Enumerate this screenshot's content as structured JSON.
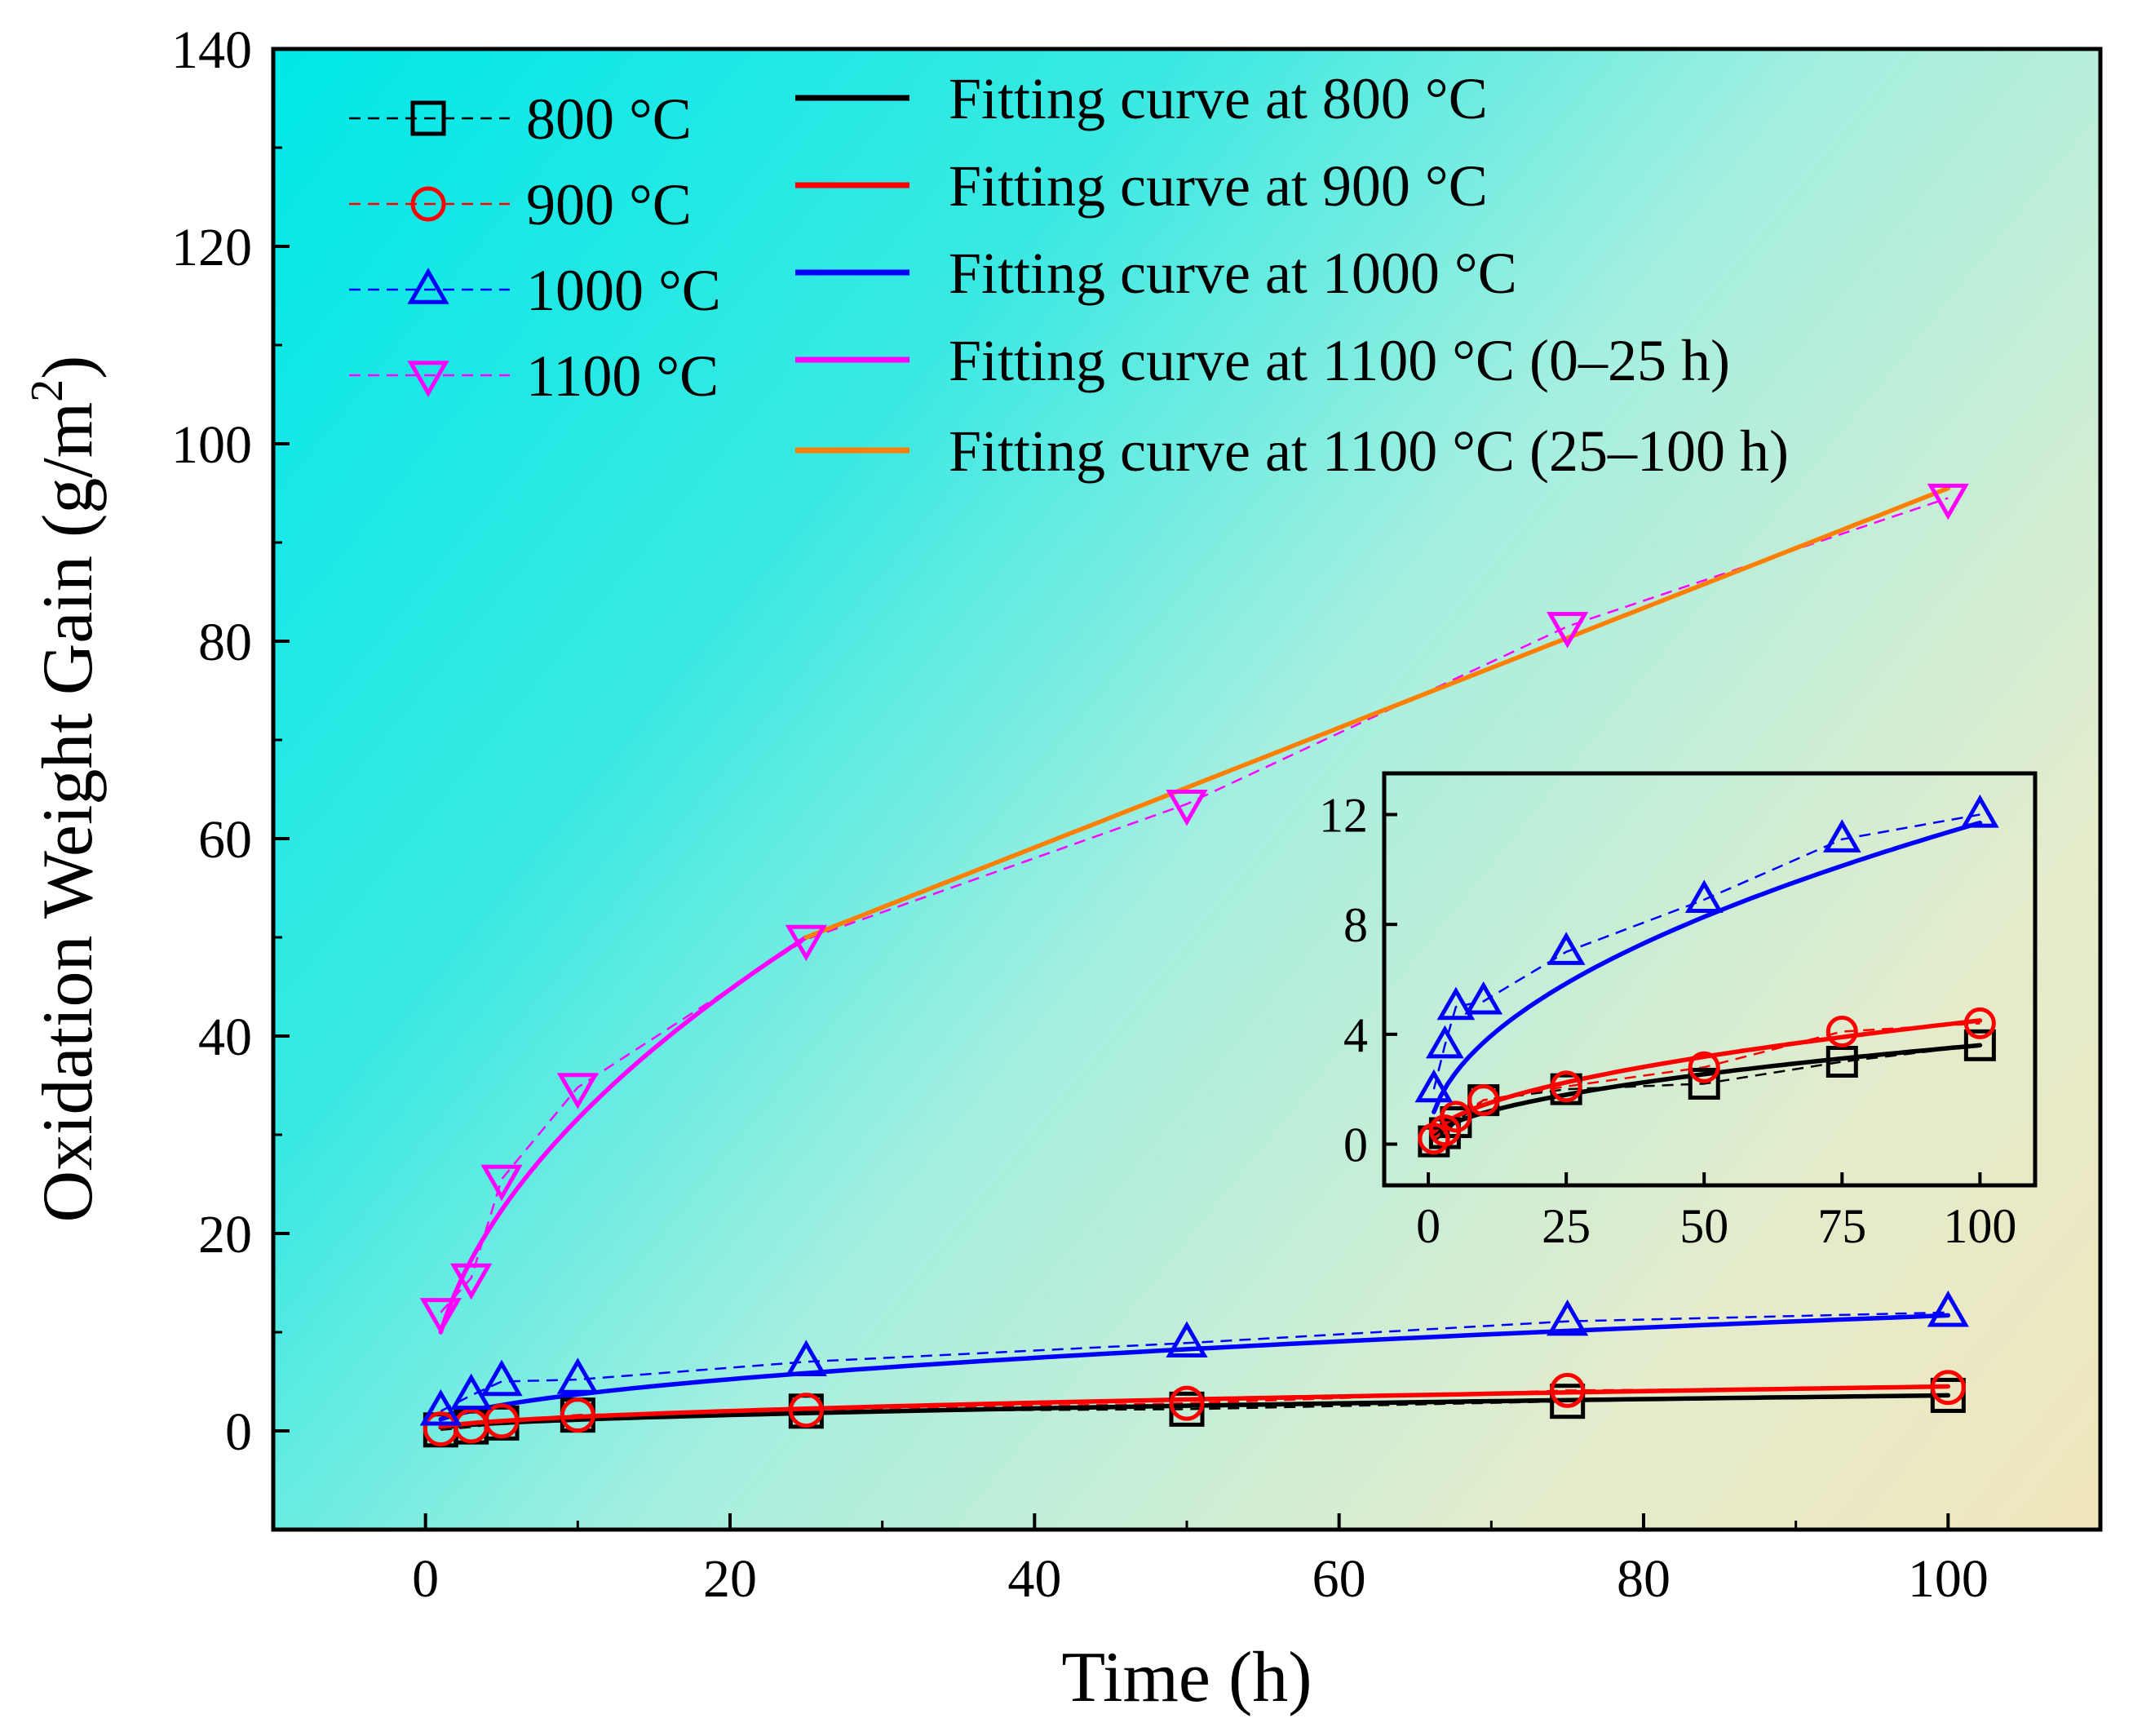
{
  "chart_data": [
    {
      "type": "scatter",
      "xlabel": "Time (h)",
      "ylabel": "Oxidation Weight Gain (g/m",
      "ylabel_sup": "2",
      "ylabel_end": ")",
      "xlim": [
        -10,
        110
      ],
      "ylim": [
        -10,
        140
      ],
      "xticks": [
        0,
        20,
        40,
        60,
        80,
        100
      ],
      "yticks": [
        0,
        20,
        40,
        60,
        80,
        100,
        120,
        140
      ],
      "series": [
        {
          "name": "800 °C",
          "marker": "square",
          "color": "#000000",
          "x": [
            1,
            3,
            5,
            10,
            25,
            50,
            75,
            100
          ],
          "y": [
            0.1,
            0.4,
            0.8,
            1.6,
            2.0,
            2.2,
            3.0,
            3.6
          ]
        },
        {
          "name": "900 °C",
          "marker": "circle",
          "color": "#ff0000",
          "x": [
            1,
            3,
            5,
            10,
            25,
            50,
            75,
            100
          ],
          "y": [
            0.2,
            0.5,
            1.0,
            1.6,
            2.1,
            2.8,
            4.1,
            4.4
          ]
        },
        {
          "name": "1000 °C",
          "marker": "triangle-up",
          "color": "#0000ff",
          "x": [
            1,
            3,
            5,
            10,
            25,
            50,
            75,
            100
          ],
          "y": [
            2.0,
            3.6,
            5.0,
            5.2,
            7.0,
            8.9,
            11.1,
            12.0
          ]
        },
        {
          "name": "1100 °C",
          "marker": "triangle-down",
          "color": "#ff00ff",
          "x": [
            1,
            3,
            5,
            10,
            25,
            50,
            75,
            100
          ],
          "y": [
            12.0,
            15.5,
            25.5,
            34.8,
            49.8,
            63.5,
            81.5,
            94.5
          ]
        }
      ],
      "fits": [
        {
          "name": "Fitting curve at 800 °C",
          "color": "#000000",
          "k": 0.36,
          "x_range": [
            1,
            100
          ]
        },
        {
          "name": "Fitting curve at 900 °C",
          "color": "#ff0000",
          "k": 0.45,
          "x_range": [
            1,
            100
          ]
        },
        {
          "name": "Fitting curve at 1000 °C",
          "color": "#0000ff",
          "k": 1.17,
          "x_range": [
            1,
            100
          ]
        },
        {
          "name": "Fitting curve at 1100 °C (0–25 h)",
          "color": "#ff00ff",
          "k": 10.0,
          "x_range": [
            1,
            25
          ]
        },
        {
          "name": "Fitting curve at 1100 °C (25–100 h)",
          "color": "#ff8000",
          "linear": [
            50.0,
            95.5
          ],
          "x_range": [
            25,
            100
          ]
        }
      ],
      "legend_position": "top"
    },
    {
      "type": "scatter",
      "inset": true,
      "xlim": [
        -8,
        110
      ],
      "ylim": [
        -1.5,
        13.5
      ],
      "xticks": [
        0,
        25,
        50,
        75,
        100
      ],
      "yticks": [
        0,
        4,
        8,
        12
      ],
      "series_ref": [
        "800 °C",
        "900 °C",
        "1000 °C"
      ],
      "legend_position": "none"
    }
  ]
}
